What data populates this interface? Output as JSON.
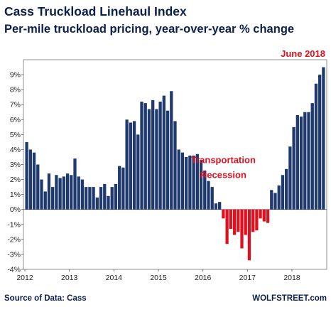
{
  "chart_data": {
    "type": "bar",
    "title": "Cass Truckload Linehaul Index",
    "subtitle": "Per-mile truckload pricing, year-over-year % change",
    "ylim": [
      -4,
      10
    ],
    "yticks": [
      -4,
      -3,
      -2,
      -1,
      0,
      1,
      2,
      3,
      4,
      5,
      6,
      7,
      8,
      9
    ],
    "ytick_labels": [
      "-4%",
      "-3%",
      "-2%",
      "-1%",
      "0%",
      "1%",
      "2%",
      "3%",
      "4%",
      "5%",
      "6%",
      "7%",
      "8%",
      "9%"
    ],
    "xticks": [
      "2012",
      "2013",
      "2014",
      "2015",
      "2016",
      "2017",
      "2018"
    ],
    "x_start": "2012-01",
    "frequency": "monthly",
    "positive_color": "#1f3a6e",
    "negative_color": "#e0101f",
    "values": [
      4.5,
      4.0,
      3.8,
      3.0,
      2.0,
      1.2,
      2.4,
      1.5,
      2.3,
      2.1,
      2.2,
      2.4,
      2.3,
      3.4,
      2.2,
      2.0,
      1.5,
      1.5,
      1.5,
      0.8,
      1.5,
      1.7,
      0.9,
      1.5,
      1.7,
      2.9,
      2.8,
      6.0,
      5.8,
      5.9,
      5.0,
      7.2,
      7.1,
      6.7,
      7.3,
      6.7,
      7.2,
      7.6,
      6.6,
      7.9,
      5.9,
      4.0,
      3.8,
      3.5,
      3.6,
      3.6,
      3.7,
      3.3,
      2.6,
      1.9,
      1.5,
      0.4,
      0.5,
      -0.6,
      -2.3,
      -1.3,
      -1.7,
      -1.5,
      -2.6,
      -1.7,
      -3.4,
      -1.5,
      -1.4,
      -0.6,
      -0.8,
      -0.9,
      1.3,
      1.1,
      1.6,
      2.3,
      2.7,
      4.2,
      5.5,
      6.3,
      6.2,
      6.5,
      6.5,
      7.1,
      8.4,
      9.0,
      9.5
    ],
    "annotations": [
      {
        "text": "Transportation",
        "x": "2016-06",
        "y": 3.1
      },
      {
        "text": "Recession",
        "x": "2016-06",
        "y": 2.1
      },
      {
        "text": "June 2018",
        "x": "2018-06",
        "y": 10.2
      }
    ]
  },
  "source": "Source of Data: Cass",
  "credit": "WOLFSTREET.com"
}
